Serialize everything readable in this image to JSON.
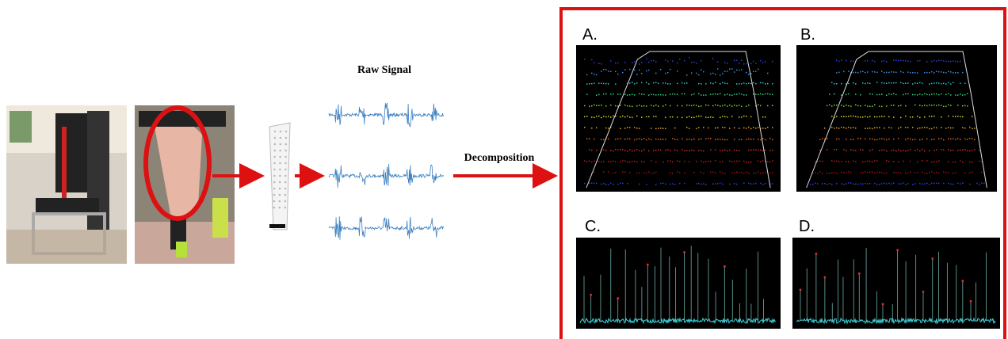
{
  "labels": {
    "raw_signal": "Raw Signal",
    "decomposition": "Decomposition"
  },
  "panels": [
    {
      "label": "A."
    },
    {
      "label": "B."
    },
    {
      "label": "C."
    },
    {
      "label": "D."
    }
  ]
}
